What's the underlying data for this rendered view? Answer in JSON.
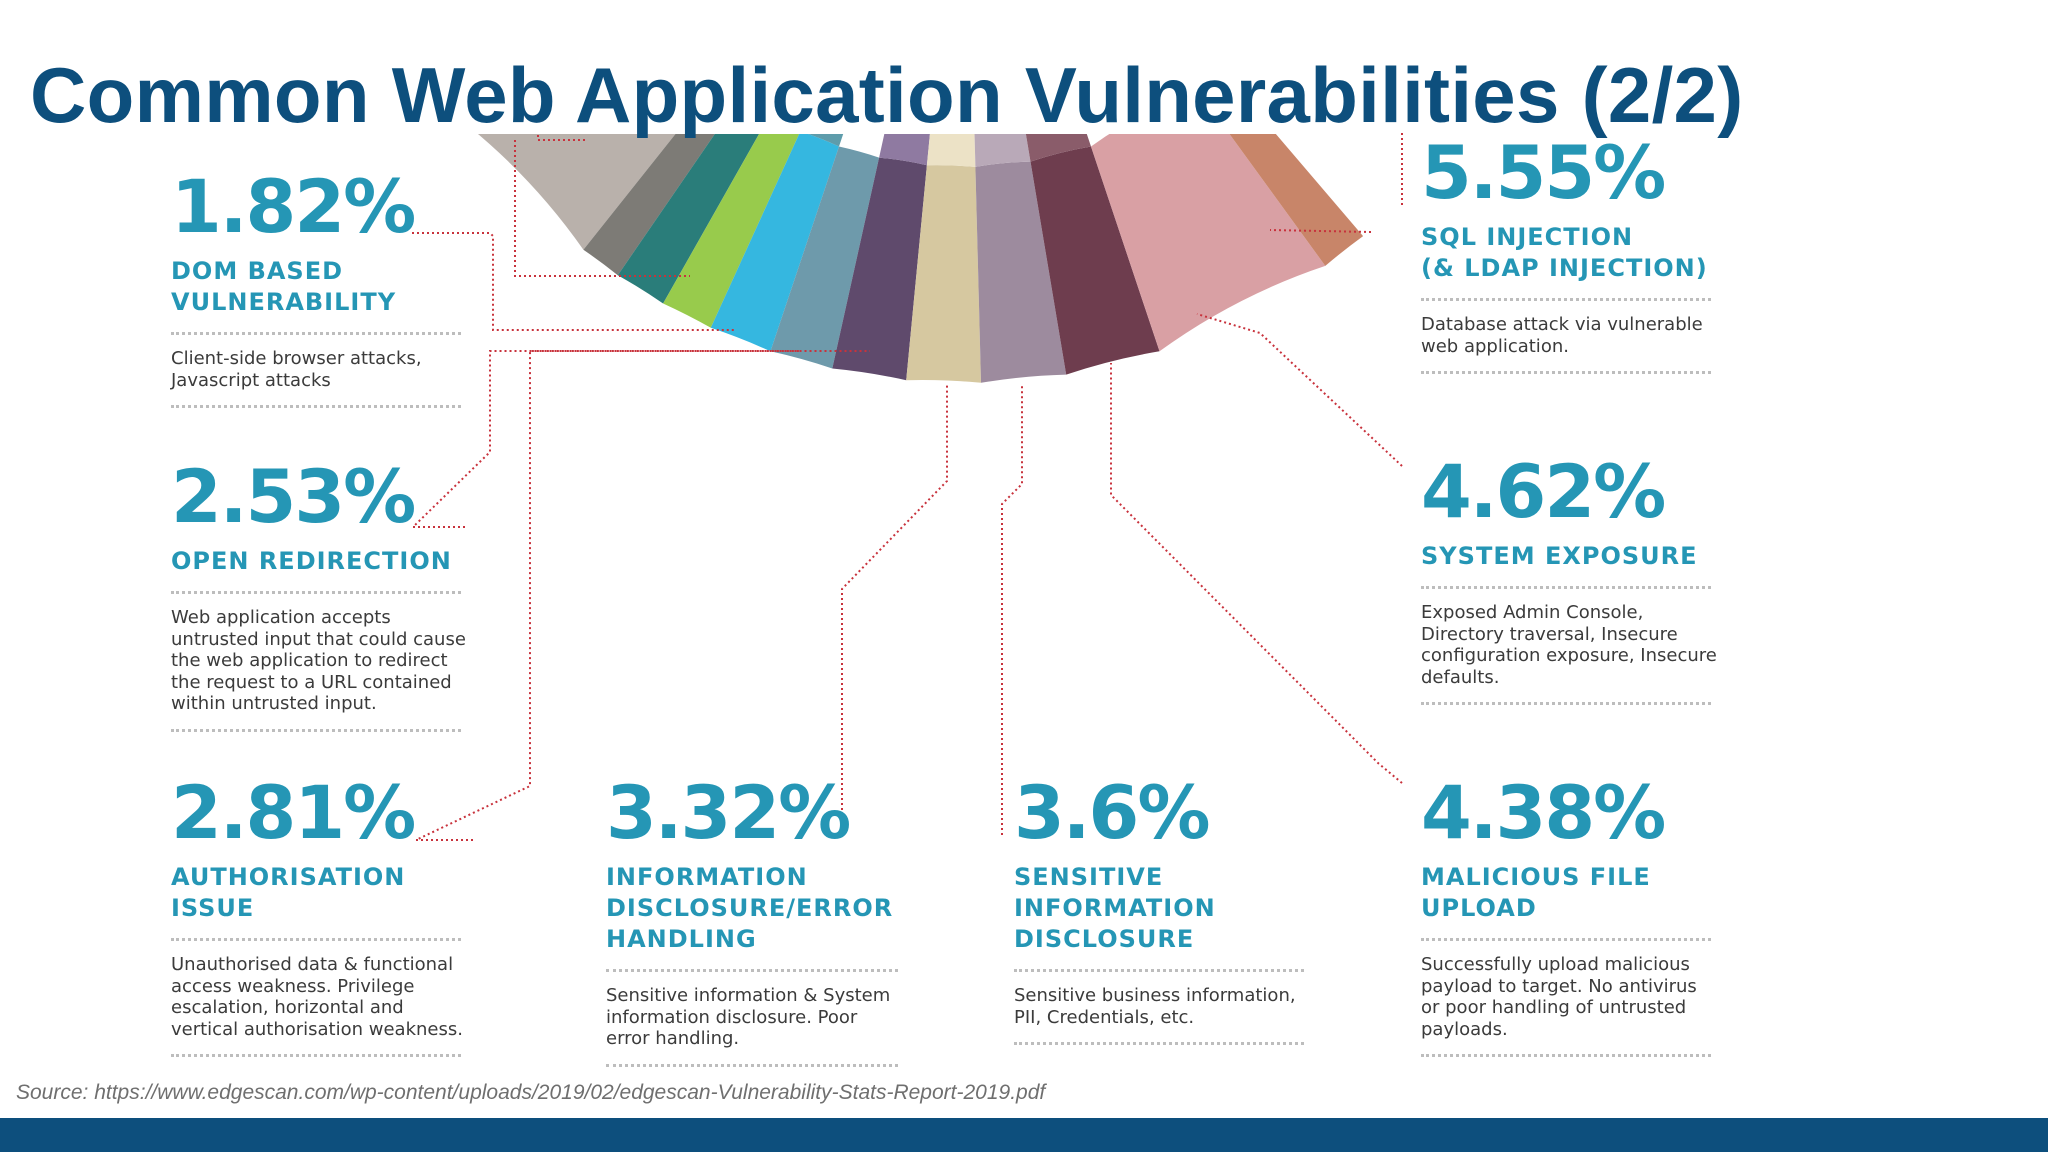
{
  "slide": {
    "title": "Common Web Application Vulnerabilities (2/2)",
    "source": "Source: https://www.edgescan.com/wp-content/uploads/2019/02/edgescan-Vulnerability-Stats-Report-2019.pdf",
    "colors": {
      "band": "#0d4f7d",
      "title": "#0d4f7d",
      "accent": "#2596b5",
      "connector": "#c8323c"
    }
  },
  "stats": [
    {
      "value": "1.82%",
      "label": [
        "DOM BASED",
        "VULNERABILITY"
      ],
      "description": [
        "Client-side browser attacks,",
        "Javascript attacks"
      ]
    },
    {
      "value": "2.53%",
      "label": [
        "OPEN REDIRECTION"
      ],
      "description": [
        "Web application accepts",
        "untrusted input that could cause",
        "the web application to redirect",
        "the request to a URL contained",
        "within untrusted input."
      ]
    },
    {
      "value": "2.81%",
      "label": [
        "AUTHORISATION",
        "ISSUE"
      ],
      "description": [
        "Unauthorised data & functional",
        "access weakness. Privilege",
        "escalation, horizontal and",
        "vertical authorisation weakness."
      ]
    },
    {
      "value": "3.32%",
      "label": [
        "INFORMATION",
        "DISCLOSURE/ERROR",
        "HANDLING"
      ],
      "description": [
        "Sensitive information & System",
        "information disclosure. Poor",
        "error handling."
      ]
    },
    {
      "value": "3.6%",
      "label": [
        "SENSITIVE",
        "INFORMATION",
        "DISCLOSURE"
      ],
      "description": [
        "Sensitive business information,",
        "PII, Credentials, etc."
      ]
    },
    {
      "value": "4.38%",
      "label": [
        "MALICIOUS FILE",
        "UPLOAD"
      ],
      "description": [
        "Successfully upload malicious",
        "payload to target. No antivirus",
        "or poor handling of untrusted",
        "payloads."
      ]
    },
    {
      "value": "4.62%",
      "label": [
        "SYSTEM EXPOSURE"
      ],
      "description": [
        "Exposed Admin Console,",
        "Directory traversal, Insecure",
        "configuration exposure, Insecure",
        "defaults."
      ]
    },
    {
      "value": "5.55%",
      "label": [
        "SQL INJECTION",
        "(& LDAP INJECTION)"
      ],
      "description": [
        "Database attack via vulnerable",
        "web application."
      ]
    }
  ],
  "donut": {
    "slice_colors": [
      "#b9b1ab",
      "#7d7b76",
      "#2a7d7a",
      "#98cb4c",
      "#35b7e0",
      "#6e9aab",
      "#5f4a6c",
      "#d6c8a0",
      "#9d8b9e",
      "#6e3d4e",
      "#d9a0a4",
      "#c88569"
    ],
    "highlight_colors": [
      "#5e9cab",
      "#a8d46e",
      "#7fcbe6",
      "#8f7aa1",
      "#ece2c6",
      "#b9a9b8",
      "#8a5c6a"
    ]
  }
}
